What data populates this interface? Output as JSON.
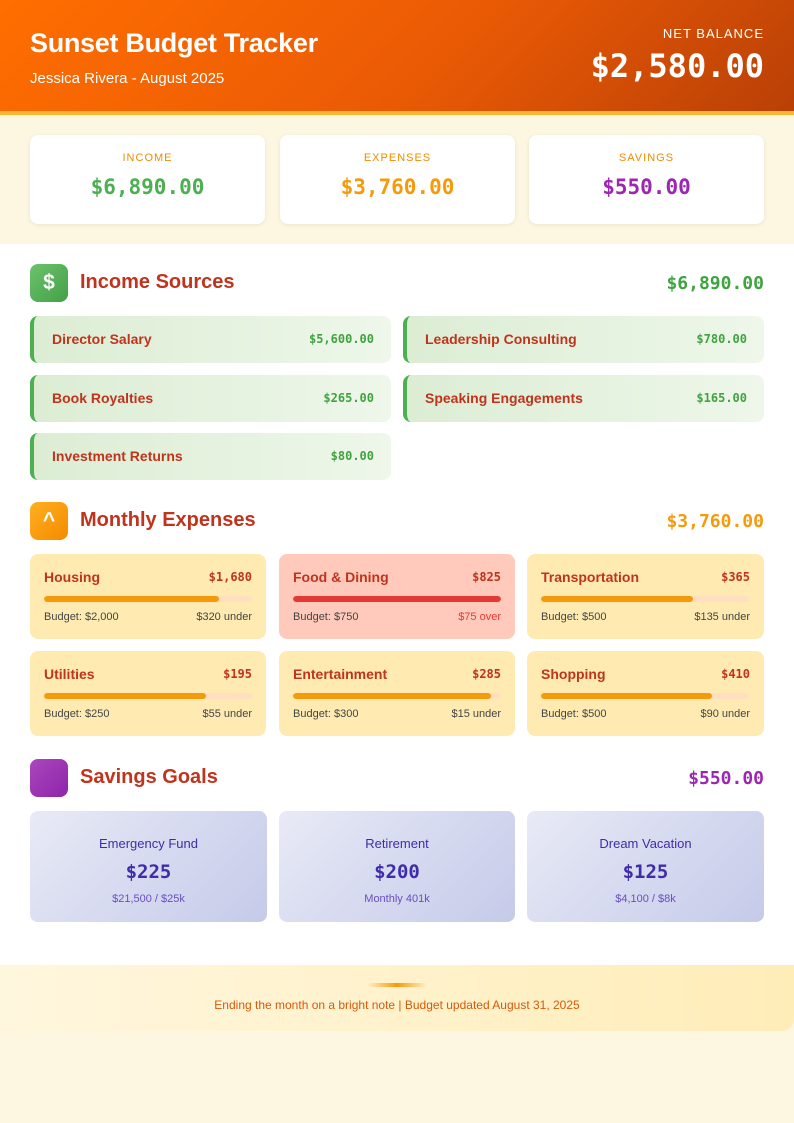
{
  "header": {
    "title": "Sunset Budget Tracker",
    "subtitle": "Jessica Rivera - August 2025",
    "net_balance_label": "NET BALANCE",
    "net_balance_value": "$2,580.00"
  },
  "summary": [
    {
      "label": "INCOME",
      "value": "$6,890.00",
      "color": "#4caf50"
    },
    {
      "label": "EXPENSES",
      "value": "$3,760.00",
      "color": "#f59a0b"
    },
    {
      "label": "SAVINGS",
      "value": "$550.00",
      "color": "#9c27b0"
    }
  ],
  "income": {
    "icon": "dollar-icon",
    "icon_glyph": "$",
    "title": "Income Sources",
    "total": "$6,890.00",
    "items": [
      {
        "name": "Director Salary",
        "value": "$5,600.00"
      },
      {
        "name": "Leadership Consulting",
        "value": "$780.00"
      },
      {
        "name": "Book Royalties",
        "value": "$265.00"
      },
      {
        "name": "Speaking Engagements",
        "value": "$165.00"
      },
      {
        "name": "Investment Returns",
        "value": "$80.00"
      }
    ]
  },
  "expenses": {
    "icon": "caret-up-icon",
    "icon_glyph": "^",
    "title": "Monthly Expenses",
    "total": "$3,760.00",
    "items": [
      {
        "name": "Housing",
        "value": "$1,680",
        "budget": "Budget: $2,000",
        "status": "$320 under",
        "fill": 0.84,
        "over": false
      },
      {
        "name": "Food & Dining",
        "value": "$825",
        "budget": "Budget: $750",
        "status": "$75 over",
        "fill": 1.0,
        "over": true
      },
      {
        "name": "Transportation",
        "value": "$365",
        "budget": "Budget: $500",
        "status": "$135 under",
        "fill": 0.73,
        "over": false
      },
      {
        "name": "Utilities",
        "value": "$195",
        "budget": "Budget: $250",
        "status": "$55 under",
        "fill": 0.78,
        "over": false
      },
      {
        "name": "Entertainment",
        "value": "$285",
        "budget": "Budget: $300",
        "status": "$15 under",
        "fill": 0.95,
        "over": false
      },
      {
        "name": "Shopping",
        "value": "$410",
        "budget": "Budget: $500",
        "status": "$90 under",
        "fill": 0.82,
        "over": false
      }
    ]
  },
  "savings": {
    "icon": "savings-square-icon",
    "title": "Savings Goals",
    "total": "$550.00",
    "items": [
      {
        "name": "Emergency Fund",
        "value": "$225",
        "detail": "$21,500 / $25k"
      },
      {
        "name": "Retirement",
        "value": "$200",
        "detail": "Monthly 401k"
      },
      {
        "name": "Dream Vacation",
        "value": "$125",
        "detail": "$4,100 / $8k"
      }
    ]
  },
  "footer": {
    "text": "Ending the month on a bright note | Budget updated August 31, 2025"
  }
}
